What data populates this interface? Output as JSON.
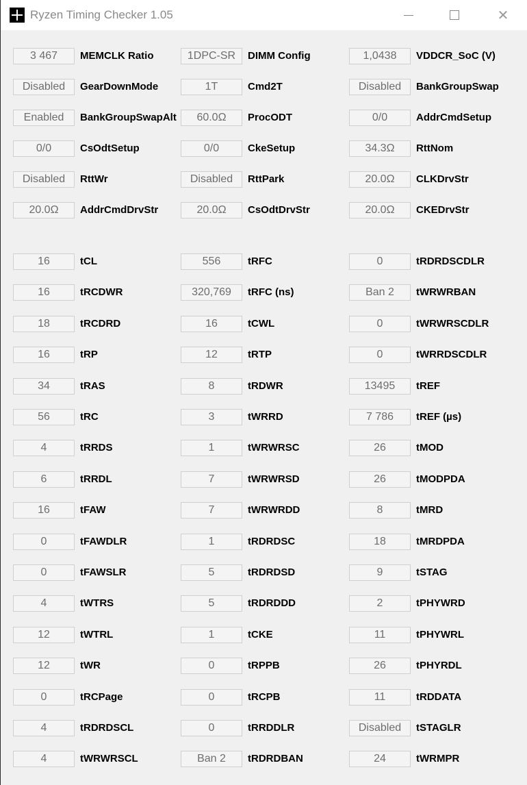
{
  "window": {
    "title": "Ryzen Timing Checker 1.05",
    "controls": [
      "minimize",
      "maximize",
      "close"
    ]
  },
  "config_section": [
    [
      {
        "value": "3 467",
        "label": "MEMCLK Ratio"
      },
      {
        "value": "1DPC-SR",
        "label": "DIMM Config"
      },
      {
        "value": "1,0438",
        "label": "VDDCR_SoC (V)"
      }
    ],
    [
      {
        "value": "Disabled",
        "label": "GearDownMode"
      },
      {
        "value": "1T",
        "label": "Cmd2T"
      },
      {
        "value": "Disabled",
        "label": "BankGroupSwap"
      }
    ],
    [
      {
        "value": "Enabled",
        "label": "BankGroupSwapAlt"
      },
      {
        "value": "60.0Ω",
        "label": "ProcODT"
      },
      {
        "value": "0/0",
        "label": "AddrCmdSetup"
      }
    ],
    [
      {
        "value": "0/0",
        "label": "CsOdtSetup"
      },
      {
        "value": "0/0",
        "label": "CkeSetup"
      },
      {
        "value": "34.3Ω",
        "label": "RttNom"
      }
    ],
    [
      {
        "value": "Disabled",
        "label": "RttWr"
      },
      {
        "value": "Disabled",
        "label": "RttPark"
      },
      {
        "value": "20.0Ω",
        "label": "CLKDrvStr"
      }
    ],
    [
      {
        "value": "20.0Ω",
        "label": "AddrCmdDrvStr"
      },
      {
        "value": "20.0Ω",
        "label": "CsOdtDrvStr"
      },
      {
        "value": "20.0Ω",
        "label": "CKEDrvStr"
      }
    ]
  ],
  "timings_section": [
    [
      {
        "value": "16",
        "label": "tCL"
      },
      {
        "value": "556",
        "label": "tRFC"
      },
      {
        "value": "0",
        "label": "tRDRDSCDLR"
      }
    ],
    [
      {
        "value": "16",
        "label": "tRCDWR"
      },
      {
        "value": "320,769",
        "label": "tRFC (ns)"
      },
      {
        "value": "Ban 2",
        "label": "tWRWRBAN"
      }
    ],
    [
      {
        "value": "18",
        "label": "tRCDRD"
      },
      {
        "value": "16",
        "label": "tCWL"
      },
      {
        "value": "0",
        "label": "tWRWRSCDLR"
      }
    ],
    [
      {
        "value": "16",
        "label": "tRP"
      },
      {
        "value": "12",
        "label": "tRTP"
      },
      {
        "value": "0",
        "label": "tWRRDSCDLR"
      }
    ],
    [
      {
        "value": "34",
        "label": "tRAS"
      },
      {
        "value": "8",
        "label": "tRDWR"
      },
      {
        "value": "13495",
        "label": "tREF"
      }
    ],
    [
      {
        "value": "56",
        "label": "tRC"
      },
      {
        "value": "3",
        "label": "tWRRD"
      },
      {
        "value": "7 786",
        "label": "tREF (µs)"
      }
    ],
    [
      {
        "value": "4",
        "label": "tRRDS"
      },
      {
        "value": "1",
        "label": "tWRWRSC"
      },
      {
        "value": "26",
        "label": "tMOD"
      }
    ],
    [
      {
        "value": "6",
        "label": "tRRDL"
      },
      {
        "value": "7",
        "label": "tWRWRSD"
      },
      {
        "value": "26",
        "label": "tMODPDA"
      }
    ],
    [
      {
        "value": "16",
        "label": "tFAW"
      },
      {
        "value": "7",
        "label": "tWRWRDD"
      },
      {
        "value": "8",
        "label": "tMRD"
      }
    ],
    [
      {
        "value": "0",
        "label": "tFAWDLR"
      },
      {
        "value": "1",
        "label": "tRDRDSC"
      },
      {
        "value": "18",
        "label": "tMRDPDA"
      }
    ],
    [
      {
        "value": "0",
        "label": "tFAWSLR"
      },
      {
        "value": "5",
        "label": "tRDRDSD"
      },
      {
        "value": "9",
        "label": "tSTAG"
      }
    ],
    [
      {
        "value": "4",
        "label": "tWTRS"
      },
      {
        "value": "5",
        "label": "tRDRDDD"
      },
      {
        "value": "2",
        "label": "tPHYWRD"
      }
    ],
    [
      {
        "value": "12",
        "label": "tWTRL"
      },
      {
        "value": "1",
        "label": "tCKE"
      },
      {
        "value": "11",
        "label": "tPHYWRL"
      }
    ],
    [
      {
        "value": "12",
        "label": "tWR"
      },
      {
        "value": "0",
        "label": "tRPPB"
      },
      {
        "value": "26",
        "label": "tPHYRDL"
      }
    ],
    [
      {
        "value": "0",
        "label": "tRCPage"
      },
      {
        "value": "0",
        "label": "tRCPB"
      },
      {
        "value": "11",
        "label": "tRDDATA"
      }
    ],
    [
      {
        "value": "4",
        "label": "tRDRDSCL"
      },
      {
        "value": "0",
        "label": "tRRDDLR"
      },
      {
        "value": "Disabled",
        "label": "tSTAGLR"
      }
    ],
    [
      {
        "value": "4",
        "label": "tWRWRSCL"
      },
      {
        "value": "Ban 2",
        "label": "tRDRDBAN"
      },
      {
        "value": "24",
        "label": "tWRMPR"
      }
    ]
  ]
}
